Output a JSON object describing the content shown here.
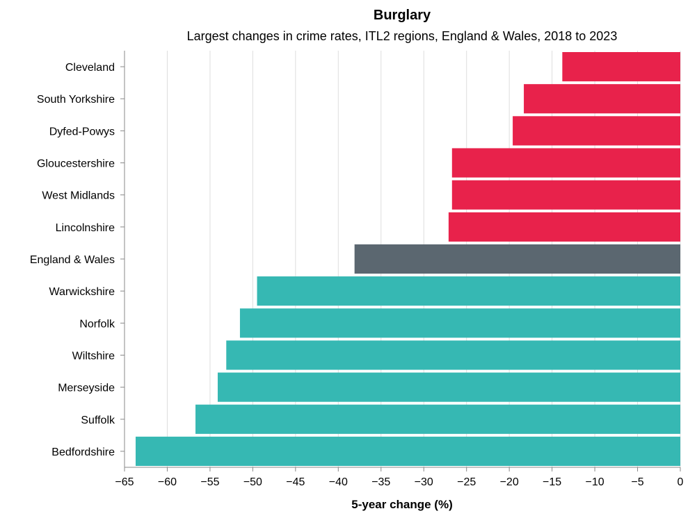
{
  "chart_data": {
    "type": "bar",
    "orientation": "horizontal",
    "title": "Burglary",
    "subtitle": "Largest changes in crime rates, ITL2 regions, England & Wales, 2018 to 2023",
    "xlabel": "5-year change (%)",
    "ylabel": "",
    "xlim": [
      -65,
      0
    ],
    "x_ticks": [
      -65,
      -60,
      -55,
      -50,
      -45,
      -40,
      -35,
      -30,
      -25,
      -20,
      -15,
      -10,
      -5,
      0
    ],
    "grid": true,
    "categories": [
      "Cleveland",
      "South Yorkshire",
      "Dyfed-Powys",
      "Gloucestershire",
      "West Midlands",
      "Lincolnshire",
      "England & Wales",
      "Warwickshire",
      "Norfolk",
      "Wiltshire",
      "Merseyside",
      "Suffolk",
      "Bedfordshire"
    ],
    "values": [
      -13.8,
      -18.3,
      -19.6,
      -26.7,
      -26.7,
      -27.1,
      -38.1,
      -49.5,
      -51.5,
      -53.1,
      -54.1,
      -56.7,
      -63.7
    ],
    "groups": [
      "smallest-decrease",
      "smallest-decrease",
      "smallest-decrease",
      "smallest-decrease",
      "smallest-decrease",
      "smallest-decrease",
      "national",
      "largest-decrease",
      "largest-decrease",
      "largest-decrease",
      "largest-decrease",
      "largest-decrease",
      "largest-decrease"
    ],
    "colors": {
      "smallest-decrease": "#e8224b",
      "national": "#5b6770",
      "largest-decrease": "#36b8b3"
    }
  }
}
